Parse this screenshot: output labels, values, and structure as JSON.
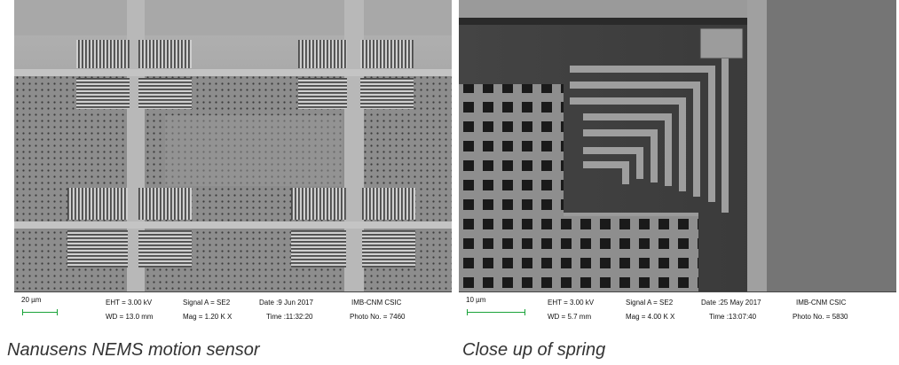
{
  "left_panel": {
    "scale_label": "20 µm",
    "eht": "EHT = 3.00 kV",
    "wd": "WD = 13.0 mm",
    "signal": "Signal A = SE2",
    "mag": "Mag =  1.20 K X",
    "date": "Date :9 Jun 2017",
    "time": "Time :11:32:20",
    "institution": "IMB-CNM CSIC",
    "photo_no": "Photo No. = 7460",
    "caption": "Nanusens NEMS motion sensor"
  },
  "right_panel": {
    "scale_label": "10 µm",
    "eht": "EHT =  3.00 kV",
    "wd": "WD =  5.7 mm",
    "signal": "Signal A = SE2",
    "mag": "Mag =   4.00 K X",
    "date": "Date :25 May 2017",
    "time": "Time :13:07:40",
    "institution": "IMB-CNM CSIC",
    "photo_no": "Photo No. = 5830",
    "caption": "Close up of spring"
  }
}
